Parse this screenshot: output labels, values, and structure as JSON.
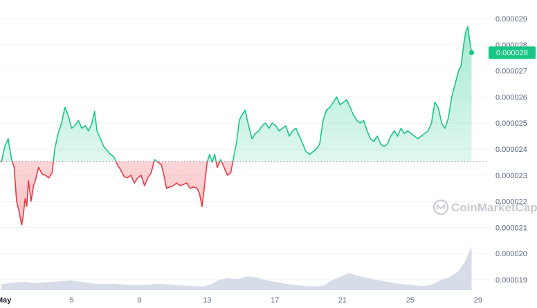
{
  "watermark": "CoinMarketCap",
  "colors": {
    "up": "#16c784",
    "down": "#ea3943",
    "volume": "#cfd6e4",
    "grid": "#eff2f5"
  },
  "current_price_label": "0.000028",
  "chart_data": {
    "type": "line",
    "title": "",
    "xlabel": "",
    "ylabel": "",
    "baseline": 2.353e-05,
    "ylim": [
      1.86e-05,
      2.94e-05
    ],
    "x_ticks": [
      {
        "day": 1,
        "label": "May"
      },
      {
        "day": 5,
        "label": "5"
      },
      {
        "day": 9,
        "label": "9"
      },
      {
        "day": 13,
        "label": "13"
      },
      {
        "day": 17,
        "label": "17"
      },
      {
        "day": 21,
        "label": "21"
      },
      {
        "day": 25,
        "label": "25"
      },
      {
        "day": 29,
        "label": "29"
      }
    ],
    "y_ticks": [
      {
        "value": 2.9e-05,
        "label": "0.000029"
      },
      {
        "value": 2.8e-05,
        "label": "0.000028"
      },
      {
        "value": 2.7e-05,
        "label": "0.000027"
      },
      {
        "value": 2.6e-05,
        "label": "0.000026"
      },
      {
        "value": 2.5e-05,
        "label": "0.000025"
      },
      {
        "value": 2.4e-05,
        "label": "0.000024"
      },
      {
        "value": 2.3e-05,
        "label": "0.000023"
      },
      {
        "value": 2.2e-05,
        "label": "0.000022"
      },
      {
        "value": 2.1e-05,
        "label": "0.000021"
      },
      {
        "value": 2e-05,
        "label": "0.000020"
      },
      {
        "value": 1.9e-05,
        "label": "0.000019"
      }
    ],
    "x_range": [
      0.85,
      29.5
    ],
    "series": [
      {
        "kind": "price",
        "points": [
          [
            0.85,
            2.35e-05
          ],
          [
            1.05,
            2.41e-05
          ],
          [
            1.25,
            2.44e-05
          ],
          [
            1.45,
            2.36e-05
          ],
          [
            1.6,
            2.33e-05
          ],
          [
            1.75,
            2.2e-05
          ],
          [
            1.9,
            2.16e-05
          ],
          [
            2.05,
            2.11e-05
          ],
          [
            2.15,
            2.15e-05
          ],
          [
            2.25,
            2.21e-05
          ],
          [
            2.35,
            2.18e-05
          ],
          [
            2.45,
            2.28e-05
          ],
          [
            2.6,
            2.2e-05
          ],
          [
            2.75,
            2.26e-05
          ],
          [
            2.9,
            2.29e-05
          ],
          [
            3.05,
            2.33e-05
          ],
          [
            3.25,
            2.305e-05
          ],
          [
            3.45,
            2.3e-05
          ],
          [
            3.65,
            2.29e-05
          ],
          [
            3.85,
            2.31e-05
          ],
          [
            4.0,
            2.4e-05
          ],
          [
            4.2,
            2.46e-05
          ],
          [
            4.4,
            2.5e-05
          ],
          [
            4.6,
            2.56e-05
          ],
          [
            4.8,
            2.53e-05
          ],
          [
            5.0,
            2.48e-05
          ],
          [
            5.2,
            2.49e-05
          ],
          [
            5.4,
            2.51e-05
          ],
          [
            5.6,
            2.48e-05
          ],
          [
            5.8,
            2.49e-05
          ],
          [
            6.0,
            2.47e-05
          ],
          [
            6.2,
            2.5e-05
          ],
          [
            6.35,
            2.545e-05
          ],
          [
            6.5,
            2.47e-05
          ],
          [
            6.7,
            2.44e-05
          ],
          [
            6.9,
            2.41e-05
          ],
          [
            7.1,
            2.395e-05
          ],
          [
            7.3,
            2.38e-05
          ],
          [
            7.5,
            2.37e-05
          ],
          [
            7.7,
            2.34e-05
          ],
          [
            7.9,
            2.32e-05
          ],
          [
            8.1,
            2.295e-05
          ],
          [
            8.3,
            2.29e-05
          ],
          [
            8.5,
            2.3e-05
          ],
          [
            8.7,
            2.27e-05
          ],
          [
            8.9,
            2.29e-05
          ],
          [
            9.1,
            2.3e-05
          ],
          [
            9.3,
            2.26e-05
          ],
          [
            9.5,
            2.29e-05
          ],
          [
            9.7,
            2.31e-05
          ],
          [
            9.9,
            2.36e-05
          ],
          [
            10.1,
            2.35e-05
          ],
          [
            10.3,
            2.34e-05
          ],
          [
            10.45,
            2.3e-05
          ],
          [
            10.6,
            2.25e-05
          ],
          [
            10.8,
            2.255e-05
          ],
          [
            11.0,
            2.26e-05
          ],
          [
            11.2,
            2.27e-05
          ],
          [
            11.4,
            2.26e-05
          ],
          [
            11.6,
            2.265e-05
          ],
          [
            11.8,
            2.27e-05
          ],
          [
            12.0,
            2.25e-05
          ],
          [
            12.2,
            2.255e-05
          ],
          [
            12.4,
            2.25e-05
          ],
          [
            12.55,
            2.23e-05
          ],
          [
            12.7,
            2.18e-05
          ],
          [
            12.85,
            2.26e-05
          ],
          [
            13.0,
            2.35e-05
          ],
          [
            13.15,
            2.38e-05
          ],
          [
            13.3,
            2.35e-05
          ],
          [
            13.45,
            2.38e-05
          ],
          [
            13.6,
            2.33e-05
          ],
          [
            13.8,
            2.36e-05
          ],
          [
            14.0,
            2.33e-05
          ],
          [
            14.2,
            2.3e-05
          ],
          [
            14.4,
            2.31e-05
          ],
          [
            14.6,
            2.38e-05
          ],
          [
            14.75,
            2.43e-05
          ],
          [
            14.9,
            2.51e-05
          ],
          [
            15.05,
            2.53e-05
          ],
          [
            15.25,
            2.55e-05
          ],
          [
            15.45,
            2.49e-05
          ],
          [
            15.65,
            2.44e-05
          ],
          [
            15.85,
            2.46e-05
          ],
          [
            16.05,
            2.47e-05
          ],
          [
            16.25,
            2.49e-05
          ],
          [
            16.45,
            2.5e-05
          ],
          [
            16.65,
            2.48e-05
          ],
          [
            16.85,
            2.5e-05
          ],
          [
            17.05,
            2.49e-05
          ],
          [
            17.25,
            2.47e-05
          ],
          [
            17.45,
            2.48e-05
          ],
          [
            17.65,
            2.49e-05
          ],
          [
            17.85,
            2.45e-05
          ],
          [
            18.05,
            2.47e-05
          ],
          [
            18.25,
            2.48e-05
          ],
          [
            18.45,
            2.45e-05
          ],
          [
            18.65,
            2.42e-05
          ],
          [
            18.85,
            2.39e-05
          ],
          [
            19.05,
            2.38e-05
          ],
          [
            19.25,
            2.39e-05
          ],
          [
            19.45,
            2.4e-05
          ],
          [
            19.65,
            2.42e-05
          ],
          [
            19.85,
            2.51e-05
          ],
          [
            20.05,
            2.55e-05
          ],
          [
            20.25,
            2.56e-05
          ],
          [
            20.45,
            2.58e-05
          ],
          [
            20.65,
            2.6e-05
          ],
          [
            20.85,
            2.57e-05
          ],
          [
            21.05,
            2.58e-05
          ],
          [
            21.25,
            2.59e-05
          ],
          [
            21.45,
            2.56e-05
          ],
          [
            21.65,
            2.53e-05
          ],
          [
            21.85,
            2.51e-05
          ],
          [
            22.05,
            2.5e-05
          ],
          [
            22.25,
            2.51e-05
          ],
          [
            22.45,
            2.47e-05
          ],
          [
            22.65,
            2.44e-05
          ],
          [
            22.85,
            2.43e-05
          ],
          [
            23.05,
            2.45e-05
          ],
          [
            23.25,
            2.42e-05
          ],
          [
            23.45,
            2.41e-05
          ],
          [
            23.65,
            2.42e-05
          ],
          [
            23.85,
            2.45e-05
          ],
          [
            24.05,
            2.47e-05
          ],
          [
            24.25,
            2.45e-05
          ],
          [
            24.45,
            2.48e-05
          ],
          [
            24.65,
            2.46e-05
          ],
          [
            24.85,
            2.47e-05
          ],
          [
            25.05,
            2.46e-05
          ],
          [
            25.25,
            2.45e-05
          ],
          [
            25.45,
            2.44e-05
          ],
          [
            25.65,
            2.45e-05
          ],
          [
            25.85,
            2.46e-05
          ],
          [
            26.05,
            2.47e-05
          ],
          [
            26.25,
            2.5e-05
          ],
          [
            26.45,
            2.58e-05
          ],
          [
            26.65,
            2.56e-05
          ],
          [
            26.85,
            2.5e-05
          ],
          [
            27.05,
            2.48e-05
          ],
          [
            27.25,
            2.52e-05
          ],
          [
            27.45,
            2.6e-05
          ],
          [
            27.65,
            2.65e-05
          ],
          [
            27.85,
            2.7e-05
          ],
          [
            28.0,
            2.72e-05
          ],
          [
            28.15,
            2.8e-05
          ],
          [
            28.28,
            2.85e-05
          ],
          [
            28.4,
            2.87e-05
          ],
          [
            28.5,
            2.82e-05
          ],
          [
            28.62,
            2.77e-05
          ]
        ]
      },
      {
        "kind": "volume",
        "points": [
          [
            0.85,
            0.13
          ],
          [
            1.5,
            0.16
          ],
          [
            2.2,
            0.18
          ],
          [
            2.8,
            0.15
          ],
          [
            3.5,
            0.17
          ],
          [
            4.2,
            0.19
          ],
          [
            4.9,
            0.21
          ],
          [
            5.6,
            0.18
          ],
          [
            6.2,
            0.15
          ],
          [
            6.8,
            0.13
          ],
          [
            7.5,
            0.14
          ],
          [
            8.2,
            0.12
          ],
          [
            8.8,
            0.11
          ],
          [
            9.5,
            0.12
          ],
          [
            10.2,
            0.14
          ],
          [
            10.8,
            0.12
          ],
          [
            11.5,
            0.1
          ],
          [
            12.2,
            0.09
          ],
          [
            12.8,
            0.08
          ],
          [
            13.2,
            0.12
          ],
          [
            13.7,
            0.22
          ],
          [
            14.2,
            0.26
          ],
          [
            14.8,
            0.24
          ],
          [
            15.4,
            0.3
          ],
          [
            15.9,
            0.28
          ],
          [
            16.4,
            0.22
          ],
          [
            17.0,
            0.18
          ],
          [
            17.6,
            0.14
          ],
          [
            18.2,
            0.11
          ],
          [
            18.8,
            0.09
          ],
          [
            19.4,
            0.08
          ],
          [
            19.9,
            0.1
          ],
          [
            20.4,
            0.22
          ],
          [
            20.9,
            0.3
          ],
          [
            21.4,
            0.38
          ],
          [
            21.8,
            0.32
          ],
          [
            22.3,
            0.28
          ],
          [
            22.8,
            0.24
          ],
          [
            23.3,
            0.2
          ],
          [
            23.8,
            0.17
          ],
          [
            24.3,
            0.14
          ],
          [
            24.8,
            0.12
          ],
          [
            25.3,
            0.1
          ],
          [
            25.8,
            0.09
          ],
          [
            26.3,
            0.12
          ],
          [
            26.8,
            0.22
          ],
          [
            27.3,
            0.28
          ],
          [
            27.8,
            0.4
          ],
          [
            28.2,
            0.6
          ],
          [
            28.62,
            0.95
          ]
        ]
      }
    ]
  }
}
